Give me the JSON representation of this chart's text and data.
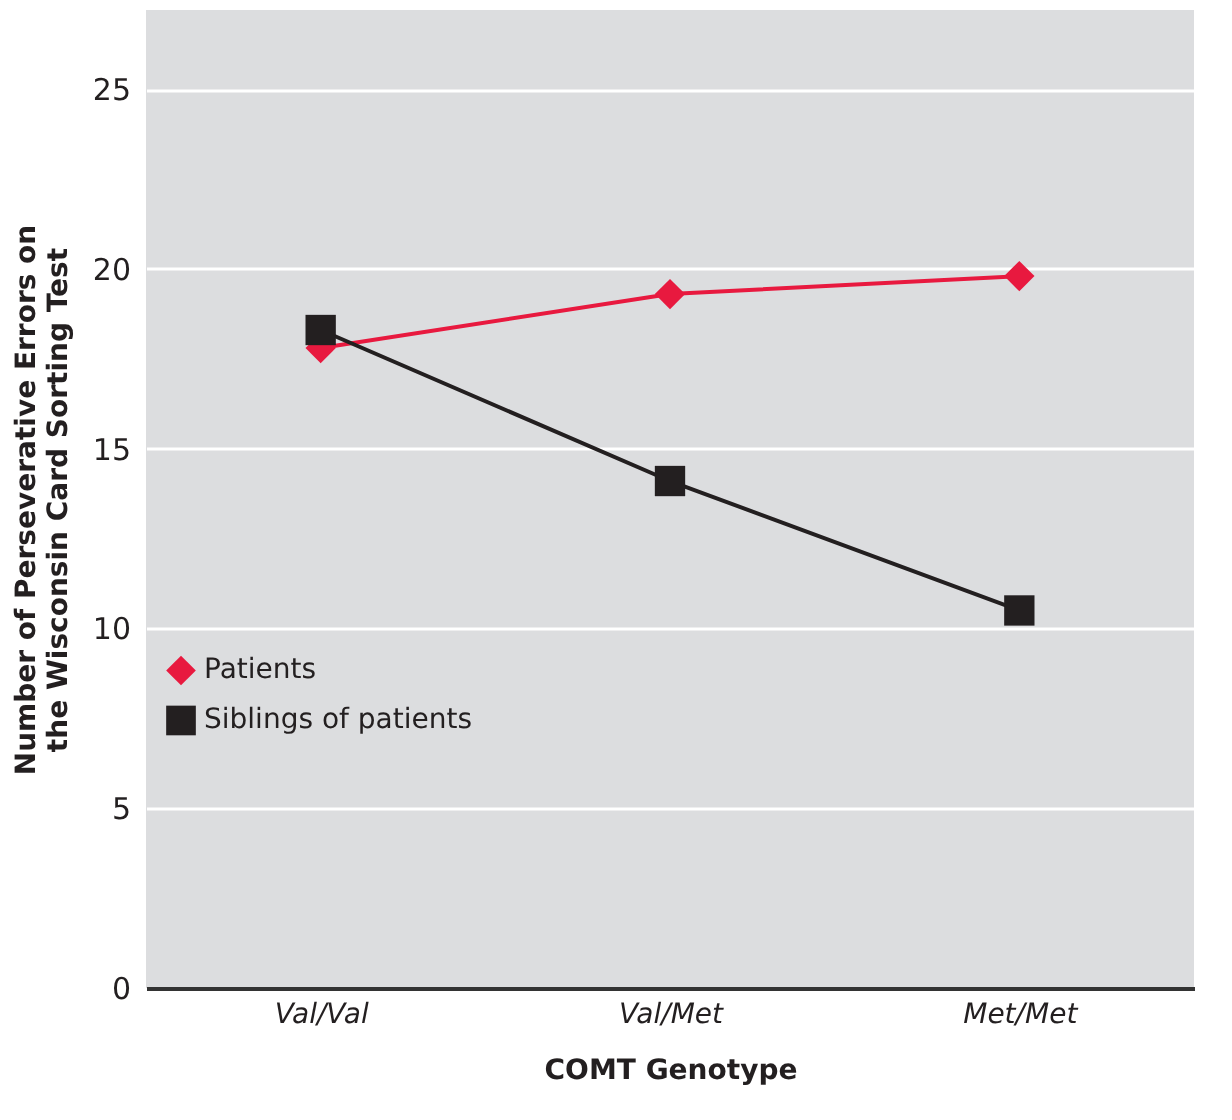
{
  "chart_data": {
    "type": "line",
    "xlabel": "COMT Genotype",
    "ylabel": "Number of Perseverative Errors on\nthe Wisconsin Card Sorting Test",
    "categories": [
      "Val/Val",
      "Val/Met",
      "Met/Met"
    ],
    "series": [
      {
        "name": "Patients",
        "color": "#e8193f",
        "marker": "diamond",
        "values": [
          17.8,
          19.3,
          19.8
        ]
      },
      {
        "name": "Siblings of patients",
        "color": "#231f20",
        "marker": "square",
        "values": [
          18.3,
          14.1,
          10.5
        ]
      }
    ],
    "ylim": [
      0,
      27.2
    ],
    "yticks": [
      0,
      5,
      10,
      15,
      20,
      25
    ],
    "grid": "y",
    "legend": "left"
  }
}
